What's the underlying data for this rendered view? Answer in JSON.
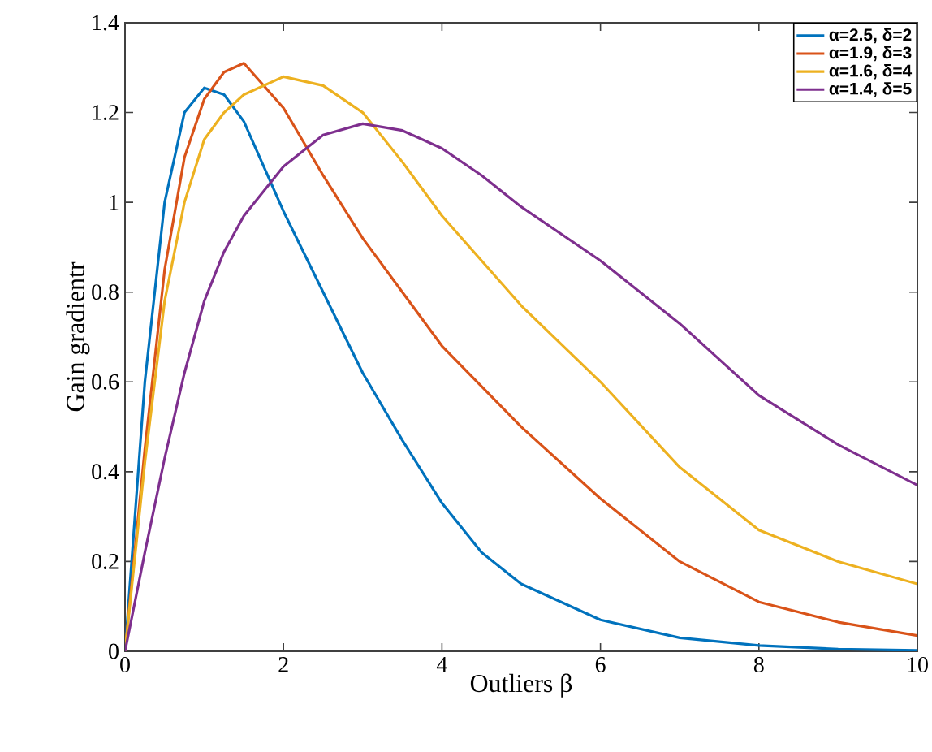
{
  "chart_data": {
    "type": "line",
    "xlabel": "Outliers β",
    "ylabel": "Gain gradientr",
    "x": [
      0,
      0.25,
      0.5,
      0.75,
      1,
      1.25,
      1.5,
      2,
      2.5,
      3,
      3.5,
      4,
      4.5,
      5,
      6,
      7,
      8,
      9,
      10
    ],
    "series": [
      {
        "name": "α=2.5, δ=2",
        "color": "#0072bd",
        "values": [
          0,
          0.6,
          1.0,
          1.2,
          1.255,
          1.24,
          1.18,
          0.98,
          0.8,
          0.62,
          0.47,
          0.33,
          0.22,
          0.15,
          0.07,
          0.03,
          0.013,
          0.005,
          0.002
        ]
      },
      {
        "name": "α=1.9, δ=3",
        "color": "#d95319",
        "values": [
          0,
          0.45,
          0.85,
          1.1,
          1.23,
          1.29,
          1.31,
          1.21,
          1.06,
          0.92,
          0.8,
          0.68,
          0.59,
          0.5,
          0.34,
          0.2,
          0.11,
          0.065,
          0.035
        ]
      },
      {
        "name": "α=1.6, δ=4",
        "color": "#edb120",
        "values": [
          0,
          0.42,
          0.78,
          1.0,
          1.14,
          1.2,
          1.24,
          1.28,
          1.26,
          1.2,
          1.09,
          0.97,
          0.87,
          0.77,
          0.6,
          0.41,
          0.27,
          0.2,
          0.15
        ]
      },
      {
        "name": "α=1.4, δ=5",
        "color": "#7e2f8e",
        "values": [
          0,
          0.22,
          0.43,
          0.62,
          0.78,
          0.89,
          0.97,
          1.08,
          1.15,
          1.175,
          1.16,
          1.12,
          1.06,
          0.99,
          0.87,
          0.73,
          0.57,
          0.46,
          0.37
        ]
      }
    ],
    "xlim": [
      0,
      10
    ],
    "ylim": [
      0,
      1.4
    ],
    "xticks": [
      0,
      2,
      4,
      6,
      8,
      10
    ],
    "yticks": [
      0,
      0.2,
      0.4,
      0.6,
      0.8,
      1,
      1.2,
      1.4
    ],
    "legend": "top right",
    "marker": "none",
    "line_style": "solid"
  }
}
